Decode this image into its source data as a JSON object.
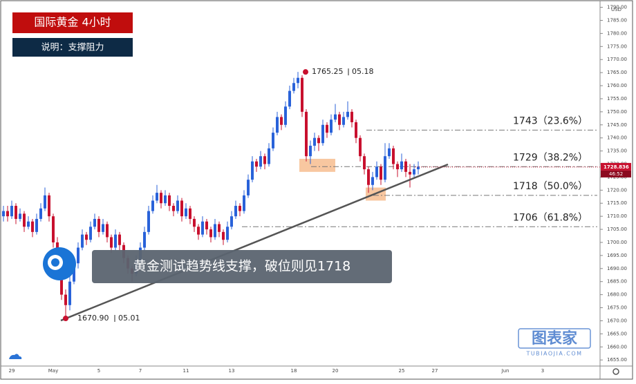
{
  "chart_data": {
    "type": "candlestick",
    "title": "国际黄金 4小时",
    "subtitle": "说明：支撑阻力",
    "annotation": "黄金测试趋势线支撑，破位则见1718",
    "currency": "USD",
    "up_color": "#2962d9",
    "down_color": "#c8102e",
    "last_price": {
      "value": 1728.836,
      "label": "1728.836"
    },
    "countdown": "46:52",
    "high_point": {
      "value": 1765.25,
      "date": "05.18"
    },
    "low_point": {
      "value": 1670.9,
      "label": "1670.90",
      "date": "05.01"
    },
    "fib_levels": [
      {
        "value": 1743,
        "label": "1743（23.6%）"
      },
      {
        "value": 1729,
        "label": "1729（38.2%）"
      },
      {
        "value": 1718,
        "label": "1718（50.0%）"
      },
      {
        "value": 1706,
        "label": "1706（61.8%）"
      }
    ],
    "watermark": "图表家",
    "watermark_url": "TUBIAOJIA.COM",
    "ylim": [
      1653.2,
      1792
    ],
    "yticks": [
      {
        "value": 1790,
        "label": "1790.00"
      },
      {
        "value": 1785,
        "label": "1785.00"
      },
      {
        "value": 1780,
        "label": "1780.00"
      },
      {
        "value": 1775,
        "label": "1775.00"
      },
      {
        "value": 1770,
        "label": "1770.00"
      },
      {
        "value": 1765,
        "label": "1765.00"
      },
      {
        "value": 1760,
        "label": "1760.00"
      },
      {
        "value": 1755,
        "label": "1755.00"
      },
      {
        "value": 1750,
        "label": "1750.00"
      },
      {
        "value": 1745,
        "label": "1745.00"
      },
      {
        "value": 1740,
        "label": "1740.00"
      },
      {
        "value": 1735,
        "label": "1735.00"
      },
      {
        "value": 1730,
        "label": "1730.00"
      },
      {
        "value": 1725,
        "label": "1725.00"
      },
      {
        "value": 1720,
        "label": "1720.00"
      },
      {
        "value": 1715,
        "label": "1715.00"
      },
      {
        "value": 1710,
        "label": "1710.00"
      },
      {
        "value": 1705,
        "label": "1705.00"
      },
      {
        "value": 1700,
        "label": "1700.00"
      },
      {
        "value": 1695,
        "label": "1695.00"
      },
      {
        "value": 1690,
        "label": "1690.00"
      },
      {
        "value": 1685,
        "label": "1685.00"
      },
      {
        "value": 1680,
        "label": "1680.00"
      },
      {
        "value": 1675,
        "label": "1675.00"
      },
      {
        "value": 1670,
        "label": "1670.00"
      },
      {
        "value": 1665,
        "label": "1665.00"
      },
      {
        "value": 1660,
        "label": "1660.00"
      },
      {
        "value": 1655,
        "label": "1655.00"
      }
    ],
    "categories": [
      null,
      null,
      "29",
      null,
      null,
      null,
      null,
      null,
      null,
      null,
      null,
      null,
      "May",
      null,
      null,
      null,
      null,
      null,
      null,
      null,
      null,
      null,
      null,
      "5",
      null,
      null,
      null,
      null,
      null,
      null,
      null,
      null,
      null,
      "7",
      null,
      null,
      null,
      null,
      null,
      null,
      null,
      null,
      null,
      null,
      "11",
      null,
      null,
      null,
      null,
      null,
      null,
      null,
      null,
      null,
      null,
      "13",
      null,
      null,
      null,
      null,
      null,
      null,
      null,
      null,
      null,
      null,
      null,
      null,
      null,
      null,
      "18",
      null,
      null,
      null,
      null,
      null,
      null,
      null,
      null,
      null,
      "20",
      null,
      null,
      null,
      null,
      null,
      null,
      null,
      null,
      null,
      null,
      null,
      null,
      null,
      null,
      null,
      "25",
      null,
      null,
      null,
      null,
      null,
      null,
      null,
      "27",
      null,
      null,
      null,
      null,
      null,
      null,
      null,
      null,
      null,
      null,
      null,
      null,
      null,
      null,
      null,
      null,
      "Jun",
      null,
      null,
      null,
      null,
      null,
      null,
      null,
      null,
      "3"
    ],
    "ohlc": [
      [
        1710,
        1714,
        1708,
        1712
      ],
      [
        1712,
        1714,
        1708,
        1710
      ],
      [
        1710,
        1716,
        1709,
        1714
      ],
      [
        1714,
        1715,
        1707,
        1709
      ],
      [
        1709,
        1713,
        1708,
        1711
      ],
      [
        1711,
        1712,
        1704,
        1706
      ],
      [
        1706,
        1710,
        1705,
        1708
      ],
      [
        1708,
        1709,
        1702,
        1704
      ],
      [
        1704,
        1711,
        1703,
        1709
      ],
      [
        1709,
        1715,
        1708,
        1713
      ],
      [
        1713,
        1721,
        1712,
        1718
      ],
      [
        1718,
        1719,
        1708,
        1710
      ],
      [
        1710,
        1711,
        1698,
        1700
      ],
      [
        1700,
        1702,
        1688,
        1690
      ],
      [
        1690,
        1692,
        1678,
        1680
      ],
      [
        1680,
        1682,
        1670.9,
        1676
      ],
      [
        1676,
        1687,
        1674,
        1685
      ],
      [
        1685,
        1694,
        1684,
        1692
      ],
      [
        1692,
        1700,
        1690,
        1698
      ],
      [
        1698,
        1705,
        1697,
        1703
      ],
      [
        1703,
        1704,
        1699,
        1701
      ],
      [
        1701,
        1708,
        1700,
        1706
      ],
      [
        1706,
        1711,
        1705,
        1709
      ],
      [
        1709,
        1710,
        1702,
        1704
      ],
      [
        1704,
        1709,
        1703,
        1707
      ],
      [
        1707,
        1708,
        1700,
        1702
      ],
      [
        1702,
        1703,
        1696,
        1698
      ],
      [
        1698,
        1705,
        1697,
        1703
      ],
      [
        1703,
        1704,
        1697,
        1699
      ],
      [
        1699,
        1700,
        1692,
        1694
      ],
      [
        1694,
        1695,
        1688,
        1690
      ],
      [
        1690,
        1691,
        1685,
        1688
      ],
      [
        1688,
        1695,
        1687,
        1693
      ],
      [
        1693,
        1700,
        1692,
        1698
      ],
      [
        1698,
        1706,
        1697,
        1704
      ],
      [
        1704,
        1714,
        1703,
        1712
      ],
      [
        1712,
        1718,
        1711,
        1716
      ],
      [
        1716,
        1722,
        1715,
        1719
      ],
      [
        1719,
        1720,
        1713,
        1715
      ],
      [
        1715,
        1720,
        1714,
        1718
      ],
      [
        1718,
        1719,
        1712,
        1714
      ],
      [
        1714,
        1715,
        1710,
        1712
      ],
      [
        1712,
        1718,
        1711,
        1716
      ],
      [
        1716,
        1717,
        1708,
        1710
      ],
      [
        1710,
        1715,
        1709,
        1713
      ],
      [
        1713,
        1714,
        1707,
        1709
      ],
      [
        1709,
        1710,
        1704,
        1706
      ],
      [
        1706,
        1707,
        1701,
        1703
      ],
      [
        1703,
        1710,
        1702,
        1708
      ],
      [
        1708,
        1709,
        1703,
        1705
      ],
      [
        1705,
        1706,
        1700,
        1702
      ],
      [
        1702,
        1709,
        1701,
        1707
      ],
      [
        1707,
        1708,
        1702,
        1704
      ],
      [
        1704,
        1705,
        1699,
        1701
      ],
      [
        1701,
        1708,
        1700,
        1706
      ],
      [
        1706,
        1712,
        1705,
        1710
      ],
      [
        1710,
        1716,
        1709,
        1714
      ],
      [
        1714,
        1715,
        1710,
        1712
      ],
      [
        1712,
        1720,
        1711,
        1718
      ],
      [
        1718,
        1726,
        1717,
        1724
      ],
      [
        1724,
        1733,
        1723,
        1731
      ],
      [
        1731,
        1732,
        1727,
        1729
      ],
      [
        1729,
        1735,
        1728,
        1733
      ],
      [
        1733,
        1734,
        1728,
        1730
      ],
      [
        1730,
        1738,
        1729,
        1736
      ],
      [
        1736,
        1744,
        1735,
        1742
      ],
      [
        1742,
        1750,
        1741,
        1748
      ],
      [
        1748,
        1749,
        1743,
        1745
      ],
      [
        1745,
        1754,
        1744,
        1752
      ],
      [
        1752,
        1760,
        1751,
        1758
      ],
      [
        1758,
        1763,
        1757,
        1761
      ],
      [
        1761,
        1765.25,
        1759,
        1763
      ],
      [
        1763,
        1764,
        1748,
        1750
      ],
      [
        1750,
        1751,
        1731,
        1733
      ],
      [
        1733,
        1739,
        1730,
        1737
      ],
      [
        1737,
        1742,
        1735,
        1740
      ],
      [
        1740,
        1741,
        1735,
        1738
      ],
      [
        1738,
        1747,
        1737,
        1745
      ],
      [
        1745,
        1746,
        1740,
        1742
      ],
      [
        1742,
        1749,
        1741,
        1747
      ],
      [
        1747,
        1753,
        1746,
        1749
      ],
      [
        1749,
        1750,
        1743,
        1745
      ],
      [
        1745,
        1750,
        1744,
        1748
      ],
      [
        1748,
        1754,
        1747,
        1750
      ],
      [
        1750,
        1751,
        1744,
        1746
      ],
      [
        1746,
        1747,
        1738,
        1740
      ],
      [
        1740,
        1741,
        1731,
        1733
      ],
      [
        1733,
        1734,
        1726,
        1728
      ],
      [
        1728,
        1729,
        1719,
        1722
      ],
      [
        1722,
        1727,
        1720,
        1725
      ],
      [
        1725,
        1731,
        1724,
        1729
      ],
      [
        1729,
        1730,
        1722,
        1724
      ],
      [
        1724,
        1738,
        1723,
        1733
      ],
      [
        1733,
        1738,
        1732,
        1736
      ],
      [
        1736,
        1737,
        1728,
        1730
      ],
      [
        1730,
        1731,
        1725,
        1728
      ],
      [
        1728,
        1734,
        1727,
        1731
      ],
      [
        1731,
        1732,
        1725,
        1727
      ],
      [
        1727,
        1730,
        1721,
        1726
      ],
      [
        1726,
        1730,
        1725,
        1728
      ],
      [
        1728,
        1731,
        1726,
        1729
      ],
      null,
      null,
      null,
      null,
      null,
      null,
      null,
      null,
      null,
      null,
      null,
      null,
      null,
      null,
      null,
      null,
      null,
      null,
      null,
      null,
      null,
      null,
      null,
      null,
      null,
      null,
      null,
      null,
      null,
      null
    ]
  }
}
